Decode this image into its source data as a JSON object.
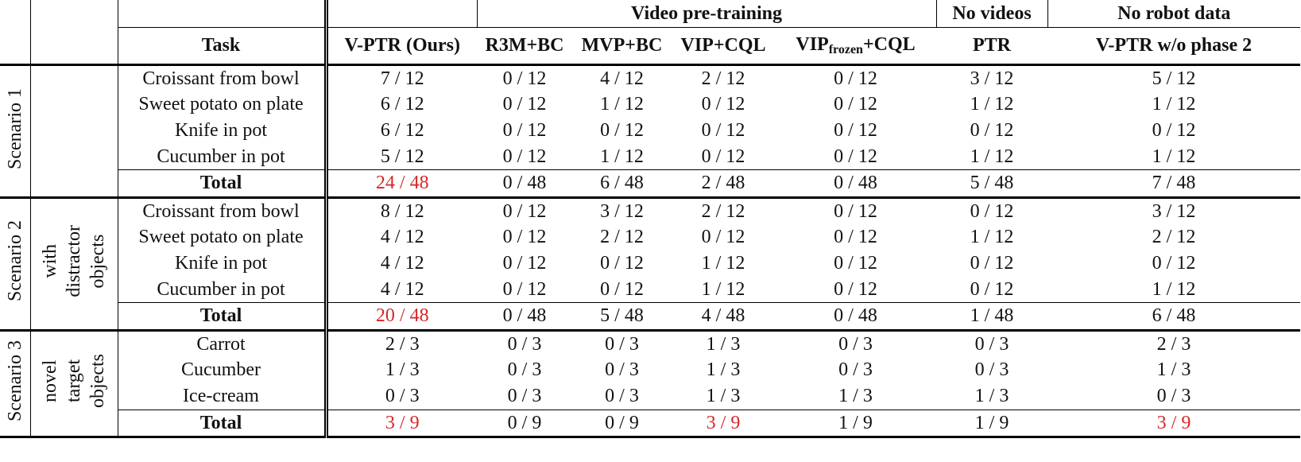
{
  "table": {
    "groups": [
      "Video pre-training",
      "No videos",
      "No robot data"
    ],
    "columns": [
      "Task",
      "V-PTR (Ours)",
      "R3M+BC",
      "MVP+BC",
      "VIP+CQL",
      [
        "VIP",
        "frozen",
        "+CQL"
      ],
      "PTR",
      "V-PTR w/o phase 2"
    ],
    "highlight_color": "#d62728",
    "sections": [
      {
        "scenario": "Scenario 1",
        "note": [],
        "rows": [
          [
            "Croissant from bowl",
            "7 / 12",
            "0 / 12",
            "4 / 12",
            "2 / 12",
            "0 / 12",
            "3 / 12",
            "5 / 12"
          ],
          [
            "Sweet potato on plate",
            "6 / 12",
            "0 / 12",
            "1 / 12",
            "0 / 12",
            "0 / 12",
            "1 / 12",
            "1 / 12"
          ],
          [
            "Knife in pot",
            "6 / 12",
            "0 / 12",
            "0 / 12",
            "0 / 12",
            "0 / 12",
            "0 / 12",
            "0 / 12"
          ],
          [
            "Cucumber in pot",
            "5 / 12",
            "0 / 12",
            "1 / 12",
            "0 / 12",
            "0 / 12",
            "1 / 12",
            "1 / 12"
          ]
        ],
        "total": [
          "Total",
          "24 / 48",
          "0 / 48",
          "6 / 48",
          "2 / 48",
          "0 / 48",
          "5 / 48",
          "7 / 48"
        ],
        "highlight_columns": [
          1
        ]
      },
      {
        "scenario": "Scenario 2",
        "note": [
          "with",
          "distractor",
          "objects"
        ],
        "rows": [
          [
            "Croissant from bowl",
            "8 / 12",
            "0 / 12",
            "3 / 12",
            "2 / 12",
            "0 / 12",
            "0 / 12",
            "3 / 12"
          ],
          [
            "Sweet potato on plate",
            "4 / 12",
            "0 / 12",
            "2 / 12",
            "0 / 12",
            "0 / 12",
            "1 / 12",
            "2 / 12"
          ],
          [
            "Knife in pot",
            "4 / 12",
            "0 / 12",
            "0 / 12",
            "1 / 12",
            "0 / 12",
            "0 / 12",
            "0 / 12"
          ],
          [
            "Cucumber in pot",
            "4 / 12",
            "0 / 12",
            "0 / 12",
            "1 / 12",
            "0 / 12",
            "0 / 12",
            "1 / 12"
          ]
        ],
        "total": [
          "Total",
          "20 / 48",
          "0 / 48",
          "5 / 48",
          "4 / 48",
          "0 / 48",
          "1 / 48",
          "6 / 48"
        ],
        "highlight_columns": [
          1
        ]
      },
      {
        "scenario": "Scenario 3",
        "note": [
          "novel",
          "target",
          "objects"
        ],
        "rows": [
          [
            "Carrot",
            "2 / 3",
            "0 / 3",
            "0 / 3",
            "1 / 3",
            "0 / 3",
            "0 / 3",
            "2 / 3"
          ],
          [
            "Cucumber",
            "1 / 3",
            "0 / 3",
            "0 / 3",
            "1 / 3",
            "0 / 3",
            "0 / 3",
            "1 / 3"
          ],
          [
            "Ice-cream",
            "0 / 3",
            "0 / 3",
            "0 / 3",
            "1 / 3",
            "1 / 3",
            "1 / 3",
            "0 / 3"
          ]
        ],
        "total": [
          "Total",
          "3 / 9",
          "0 / 9",
          "0 / 9",
          "3 / 9",
          "1 / 9",
          "1 / 9",
          "3 / 9"
        ],
        "highlight_columns": [
          1,
          4,
          7
        ]
      }
    ]
  }
}
